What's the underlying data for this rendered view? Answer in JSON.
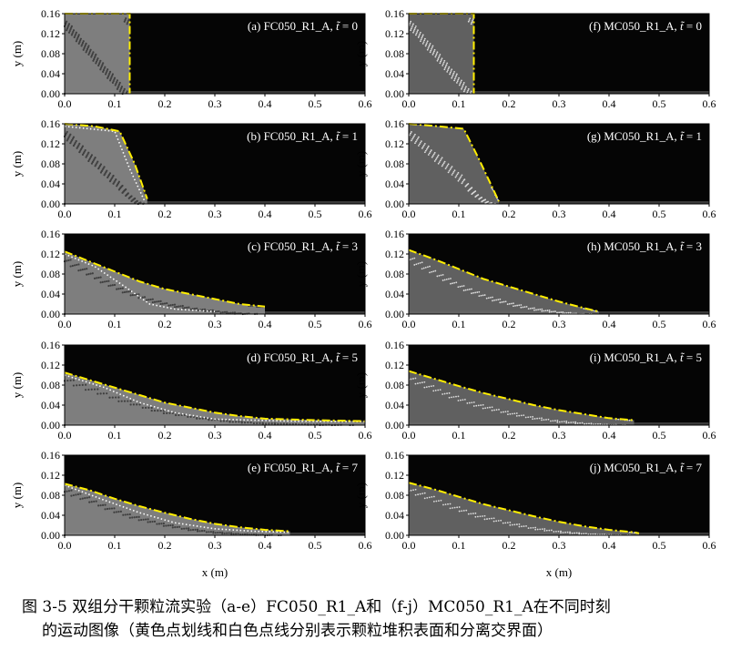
{
  "figure": {
    "x_axis_label": "x (m)",
    "y_axis_label": "y (m)",
    "x_ticks": [
      "0.0",
      "0.1",
      "0.2",
      "0.3",
      "0.4",
      "0.5",
      "0.6"
    ],
    "y_ticks": [
      "0.00",
      "0.04",
      "0.08",
      "0.12",
      "0.16"
    ],
    "columns": [
      {
        "material": "FC050_R1_A",
        "fill_color": "#8c8c8c",
        "panels": [
          {
            "label": "(a) FC050_R1_A, ",
            "t": "0",
            "surface": [
              [
                0,
                0.16
              ],
              [
                0.13,
                0.16
              ],
              [
                0.13,
                0.0
              ]
            ],
            "interface": []
          },
          {
            "label": "(b) FC050_R1_A, ",
            "t": "1",
            "surface": [
              [
                0,
                0.16
              ],
              [
                0.06,
                0.155
              ],
              [
                0.11,
                0.145
              ],
              [
                0.14,
                0.08
              ],
              [
                0.165,
                0.01
              ]
            ],
            "interface": [
              [
                0,
                0.155
              ],
              [
                0.1,
                0.145
              ],
              [
                0.13,
                0.07
              ],
              [
                0.16,
                0.005
              ]
            ]
          },
          {
            "label": "(c) FC050_R1_A, ",
            "t": "3",
            "surface": [
              [
                0,
                0.125
              ],
              [
                0.05,
                0.105
              ],
              [
                0.1,
                0.085
              ],
              [
                0.15,
                0.065
              ],
              [
                0.2,
                0.05
              ],
              [
                0.25,
                0.04
              ],
              [
                0.3,
                0.03
              ],
              [
                0.35,
                0.02
              ],
              [
                0.4,
                0.015
              ]
            ],
            "interface": [
              [
                0,
                0.12
              ],
              [
                0.06,
                0.095
              ],
              [
                0.12,
                0.055
              ],
              [
                0.17,
                0.02
              ],
              [
                0.22,
                0.01
              ],
              [
                0.3,
                0.005
              ]
            ]
          },
          {
            "label": "(d) FC050_R1_A, ",
            "t": "5",
            "surface": [
              [
                0,
                0.105
              ],
              [
                0.05,
                0.09
              ],
              [
                0.1,
                0.075
              ],
              [
                0.15,
                0.06
              ],
              [
                0.2,
                0.045
              ],
              [
                0.25,
                0.035
              ],
              [
                0.3,
                0.025
              ],
              [
                0.35,
                0.018
              ],
              [
                0.4,
                0.013
              ],
              [
                0.5,
                0.01
              ],
              [
                0.6,
                0.008
              ]
            ],
            "interface": [
              [
                0,
                0.1
              ],
              [
                0.08,
                0.075
              ],
              [
                0.15,
                0.045
              ],
              [
                0.22,
                0.025
              ],
              [
                0.3,
                0.012
              ],
              [
                0.45,
                0.008
              ],
              [
                0.6,
                0.007
              ]
            ]
          },
          {
            "label": "(e) FC050_R1_A, ",
            "t": "7",
            "surface": [
              [
                0,
                0.103
              ],
              [
                0.05,
                0.09
              ],
              [
                0.1,
                0.073
              ],
              [
                0.15,
                0.058
              ],
              [
                0.2,
                0.045
              ],
              [
                0.25,
                0.033
              ],
              [
                0.3,
                0.023
              ],
              [
                0.35,
                0.016
              ],
              [
                0.4,
                0.011
              ],
              [
                0.45,
                0.008
              ]
            ],
            "interface": [
              [
                0,
                0.1
              ],
              [
                0.08,
                0.07
              ],
              [
                0.15,
                0.045
              ],
              [
                0.22,
                0.025
              ],
              [
                0.3,
                0.013
              ],
              [
                0.38,
                0.008
              ],
              [
                0.45,
                0.006
              ]
            ]
          }
        ]
      },
      {
        "material": "MC050_R1_A",
        "fill_color": "#6a6a6a",
        "panels": [
          {
            "label": "(f) MC050_R1_A, ",
            "t": "0",
            "surface": [
              [
                0,
                0.16
              ],
              [
                0.13,
                0.16
              ],
              [
                0.13,
                0.0
              ]
            ],
            "interface": []
          },
          {
            "label": "(g) MC050_R1_A, ",
            "t": "1",
            "surface": [
              [
                0,
                0.16
              ],
              [
                0.06,
                0.155
              ],
              [
                0.11,
                0.15
              ],
              [
                0.14,
                0.09
              ],
              [
                0.18,
                0.005
              ]
            ],
            "interface": []
          },
          {
            "label": "(h) MC050_R1_A, ",
            "t": "3",
            "surface": [
              [
                0,
                0.128
              ],
              [
                0.05,
                0.11
              ],
              [
                0.1,
                0.09
              ],
              [
                0.15,
                0.07
              ],
              [
                0.2,
                0.055
              ],
              [
                0.25,
                0.04
              ],
              [
                0.3,
                0.025
              ],
              [
                0.35,
                0.012
              ],
              [
                0.38,
                0.005
              ]
            ],
            "interface": []
          },
          {
            "label": "(i) MC050_R1_A, ",
            "t": "5",
            "surface": [
              [
                0,
                0.108
              ],
              [
                0.05,
                0.093
              ],
              [
                0.1,
                0.078
              ],
              [
                0.15,
                0.064
              ],
              [
                0.2,
                0.052
              ],
              [
                0.25,
                0.04
              ],
              [
                0.3,
                0.03
              ],
              [
                0.35,
                0.022
              ],
              [
                0.4,
                0.014
              ],
              [
                0.45,
                0.01
              ]
            ],
            "interface": []
          },
          {
            "label": "(j) MC050_R1_A, ",
            "t": "7",
            "surface": [
              [
                0,
                0.105
              ],
              [
                0.05,
                0.092
              ],
              [
                0.1,
                0.077
              ],
              [
                0.15,
                0.062
              ],
              [
                0.2,
                0.05
              ],
              [
                0.25,
                0.038
              ],
              [
                0.3,
                0.027
              ],
              [
                0.35,
                0.018
              ],
              [
                0.4,
                0.011
              ],
              [
                0.45,
                0.006
              ],
              [
                0.46,
                0.004
              ]
            ],
            "interface": []
          }
        ]
      }
    ],
    "colors": {
      "surface_line": "#ffee00",
      "interface_line": "#ffffff",
      "background": "#050505"
    }
  },
  "caption": {
    "line1": "图 3-5 双组分干颗粒流实验（a-e）FC050_R1_A和（f-j）MC050_R1_A在不同时刻",
    "line2": "的运动图像（黄色点划线和白色点线分别表示颗粒堆积表面和分离交界面）"
  }
}
